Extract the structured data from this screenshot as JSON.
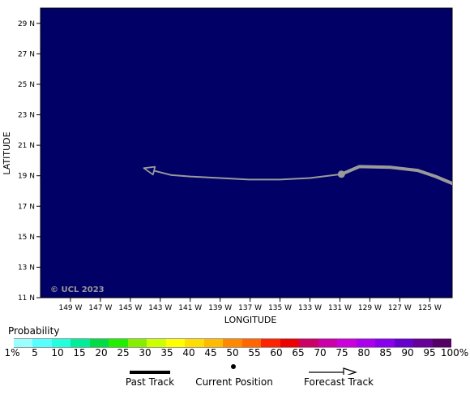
{
  "map": {
    "watermark": "© UCL 2023",
    "xlabel": "LONGITUDE",
    "ylabel": "LATITUDE",
    "ocean_color": "#000066",
    "track_color": "#9a9a9a",
    "lon_range": [
      -151,
      -123.5
    ],
    "lat_range": [
      11,
      30
    ],
    "lat_ticks": [
      {
        "value": 29,
        "label": "29 N"
      },
      {
        "value": 27,
        "label": "27 N"
      },
      {
        "value": 25,
        "label": "25 N"
      },
      {
        "value": 23,
        "label": "23 N"
      },
      {
        "value": 21,
        "label": "21 N"
      },
      {
        "value": 19,
        "label": "19 N"
      },
      {
        "value": 17,
        "label": "17 N"
      },
      {
        "value": 15,
        "label": "15 N"
      },
      {
        "value": 13,
        "label": "13 N"
      },
      {
        "value": 11,
        "label": "11 N"
      }
    ],
    "lon_ticks": [
      {
        "value": -149,
        "label": "149 W"
      },
      {
        "value": -147,
        "label": "147 W"
      },
      {
        "value": -145,
        "label": "145 W"
      },
      {
        "value": -143,
        "label": "143 W"
      },
      {
        "value": -141,
        "label": "141 W"
      },
      {
        "value": -139,
        "label": "139 W"
      },
      {
        "value": -137,
        "label": "137 W"
      },
      {
        "value": -135,
        "label": "135 W"
      },
      {
        "value": -133,
        "label": "133 W"
      },
      {
        "value": -131,
        "label": "131 W"
      },
      {
        "value": -129,
        "label": "129 W"
      },
      {
        "value": -127,
        "label": "127 W"
      },
      {
        "value": -125,
        "label": "125 W"
      }
    ],
    "past_track": [
      [
        -123.5,
        18.5
      ],
      [
        -124.6,
        18.95
      ],
      [
        -125.8,
        19.35
      ],
      [
        -127.6,
        19.55
      ],
      [
        -129.7,
        19.6
      ],
      [
        -130.9,
        19.1
      ]
    ],
    "current_position": [
      -130.9,
      19.1
    ],
    "forecast_track": [
      [
        -130.9,
        19.1
      ],
      [
        -133.0,
        18.85
      ],
      [
        -135.0,
        18.75
      ],
      [
        -137.1,
        18.75
      ],
      [
        -139.0,
        18.85
      ],
      [
        -141.0,
        18.95
      ],
      [
        -142.3,
        19.05
      ],
      [
        -144.1,
        19.5
      ]
    ]
  },
  "legend": {
    "title": "Probability",
    "colors": [
      "#99ffff",
      "#55ffff",
      "#22ffdd",
      "#00ee99",
      "#00dd44",
      "#22ee00",
      "#88ee00",
      "#ccff00",
      "#ffff00",
      "#ffdd00",
      "#ffbb00",
      "#ff8800",
      "#ff6600",
      "#ff2200",
      "#ee0000",
      "#cc0066",
      "#cc00aa",
      "#cc00dd",
      "#aa00ee",
      "#8800ee",
      "#6600cc",
      "#660099",
      "#550066"
    ],
    "tick_labels": [
      "1%",
      "5",
      "10",
      "15",
      "20",
      "25",
      "30",
      "35",
      "40",
      "45",
      "50",
      "55",
      "60",
      "65",
      "70",
      "75",
      "80",
      "85",
      "90",
      "95",
      "100%"
    ]
  },
  "key": {
    "past_track": "Past Track",
    "current_position": "Current Position",
    "forecast_track": "Forecast Track"
  }
}
